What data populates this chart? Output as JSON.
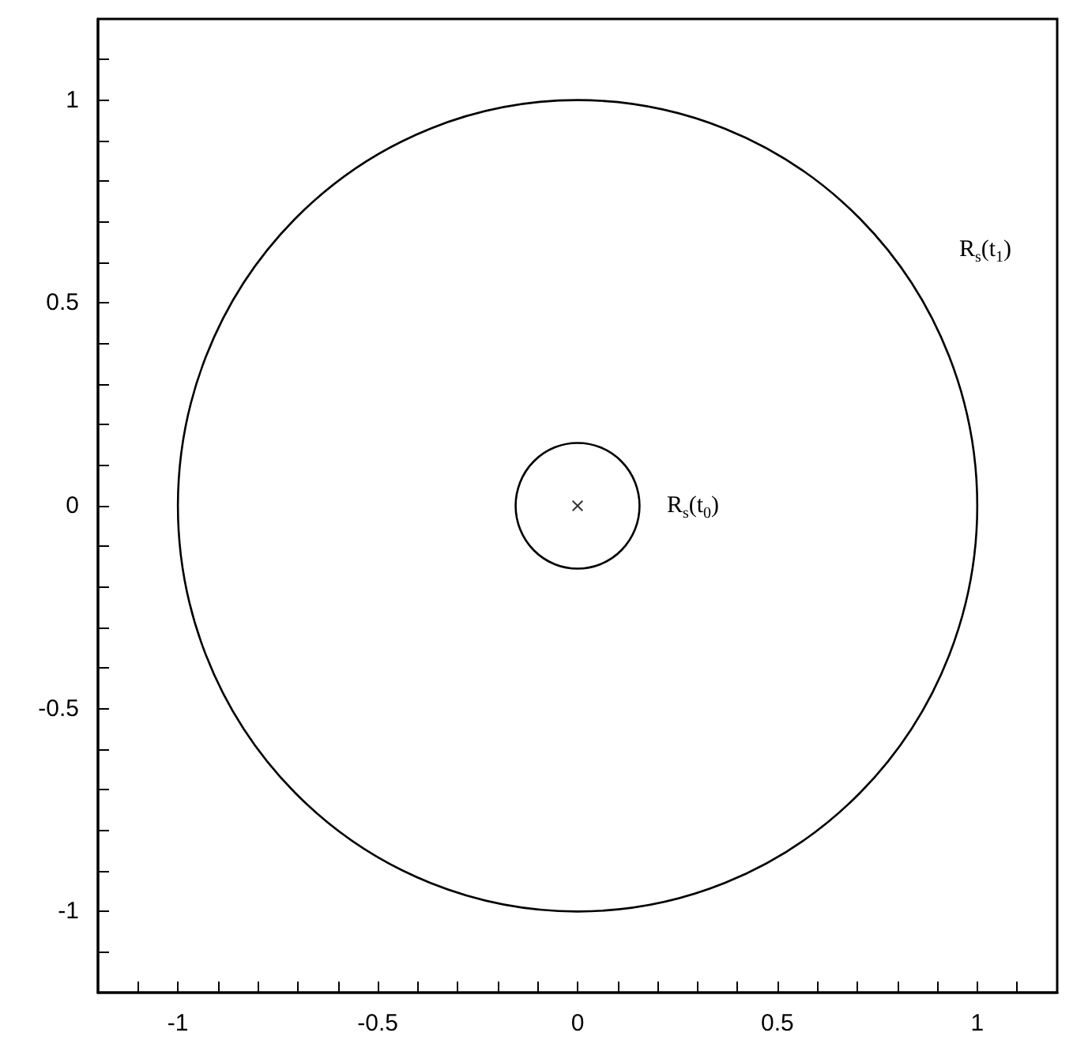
{
  "chart_data": {
    "type": "scatter",
    "xlim": [
      -1.2,
      1.2
    ],
    "ylim": [
      -1.2,
      1.2
    ],
    "xticks": [
      {
        "value": -1.1,
        "label": null
      },
      -1,
      {
        "value": -0.9,
        "label": null
      },
      {
        "value": -0.8,
        "label": null
      },
      {
        "value": -0.7,
        "label": null
      },
      {
        "value": -0.6,
        "label": null
      },
      -0.5,
      {
        "value": -0.4,
        "label": null
      },
      {
        "value": -0.3,
        "label": null
      },
      {
        "value": -0.2,
        "label": null
      },
      {
        "value": -0.1,
        "label": null
      },
      0,
      {
        "value": 0.1,
        "label": null
      },
      {
        "value": 0.2,
        "label": null
      },
      {
        "value": 0.3,
        "label": null
      },
      {
        "value": 0.4,
        "label": null
      },
      0.5,
      {
        "value": 0.6,
        "label": null
      },
      {
        "value": 0.7,
        "label": null
      },
      {
        "value": 0.8,
        "label": null
      },
      {
        "value": 0.9,
        "label": null
      },
      1,
      {
        "value": 1.1,
        "label": null
      }
    ],
    "yticks": [
      {
        "value": -1.1,
        "label": null
      },
      -1,
      {
        "value": -0.9,
        "label": null
      },
      {
        "value": -0.8,
        "label": null
      },
      {
        "value": -0.7,
        "label": null
      },
      {
        "value": -0.6,
        "label": null
      },
      -0.5,
      {
        "value": -0.4,
        "label": null
      },
      {
        "value": -0.3,
        "label": null
      },
      {
        "value": -0.2,
        "label": null
      },
      {
        "value": -0.1,
        "label": null
      },
      0,
      {
        "value": 0.1,
        "label": null
      },
      {
        "value": 0.2,
        "label": null
      },
      {
        "value": 0.3,
        "label": null
      },
      {
        "value": 0.4,
        "label": null
      },
      0.5,
      {
        "value": 0.6,
        "label": null
      },
      {
        "value": 0.7,
        "label": null
      },
      {
        "value": 0.8,
        "label": null
      },
      {
        "value": 0.9,
        "label": null
      },
      1,
      {
        "value": 1.1,
        "label": null
      }
    ],
    "grid": false,
    "series": [
      {
        "color": "#000000",
        "x": [
          0
        ],
        "values": [
          0
        ]
      }
    ],
    "annotations": [
      "R$_{s}$(t$_{1}$)",
      "R$_{s}$(t$_{0}$)"
    ]
  }
}
